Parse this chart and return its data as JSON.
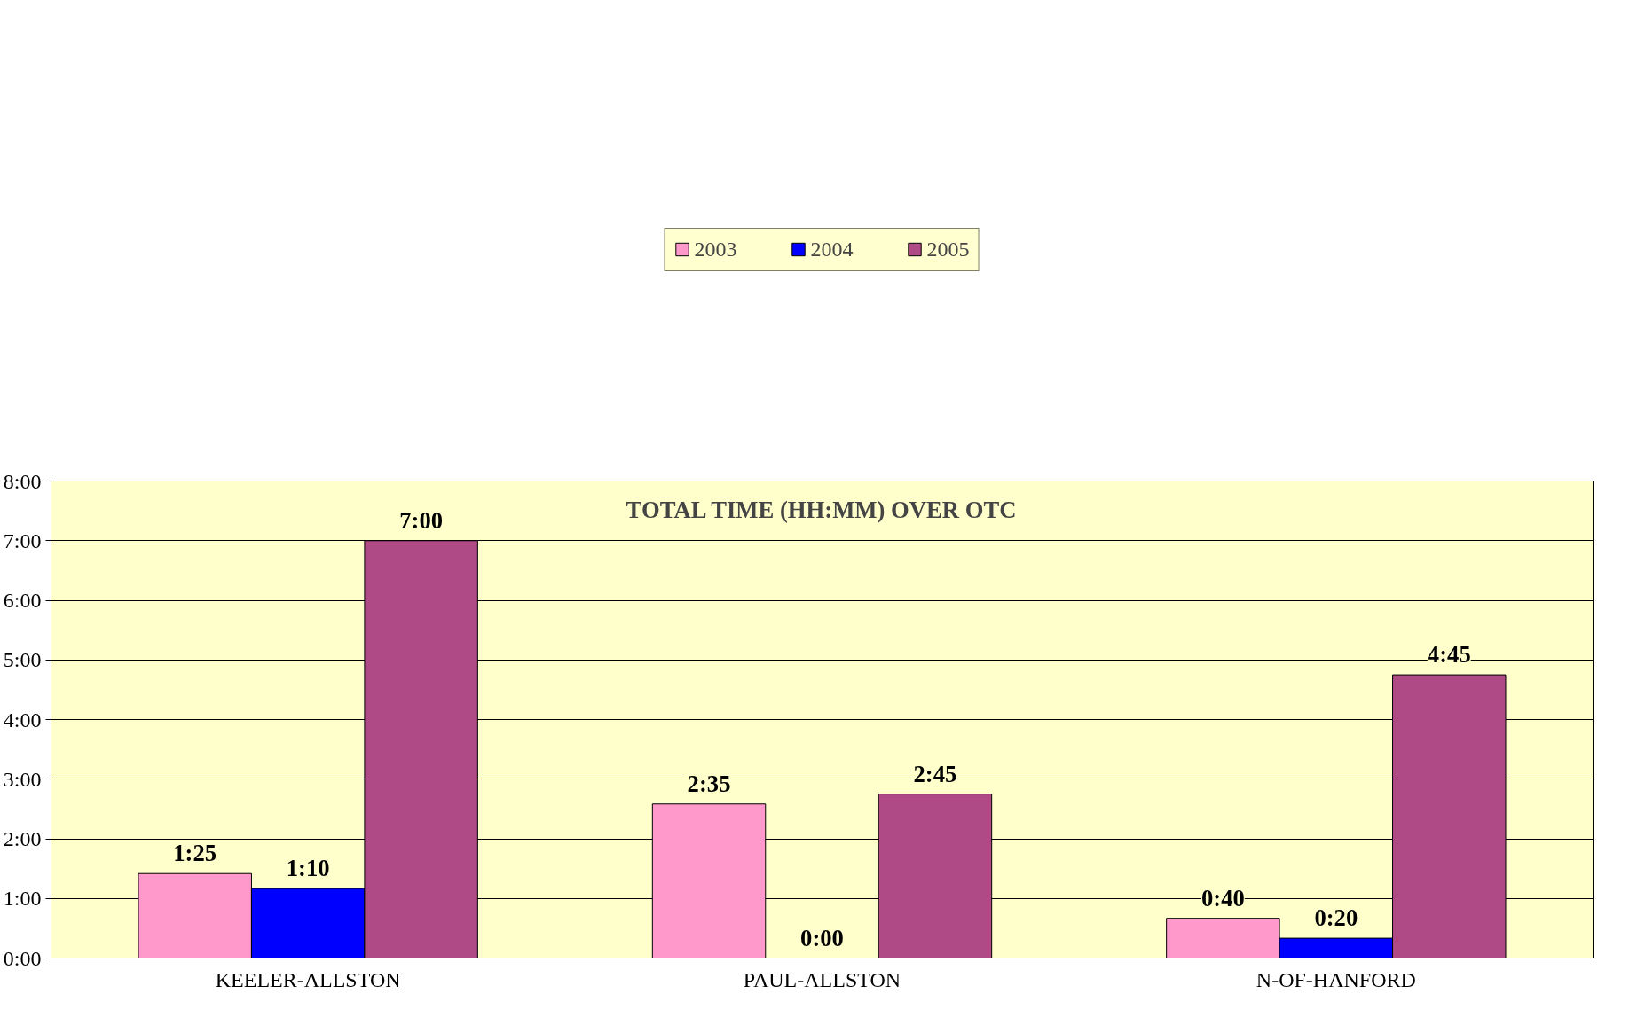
{
  "chart_data": {
    "type": "bar",
    "title": "TOTAL TIME (HH:MM) OVER OTC",
    "categories": [
      "KEELER-ALLSTON",
      "PAUL-ALLSTON",
      "N-OF-HANFORD"
    ],
    "series": [
      {
        "name": "2003",
        "color": "#ff99cc",
        "values": [
          1.4167,
          2.5833,
          0.6667
        ],
        "value_labels": [
          "1:25",
          "2:35",
          "0:40"
        ]
      },
      {
        "name": "2004",
        "color": "#0000ff",
        "values": [
          1.1667,
          0,
          0.3333
        ],
        "value_labels": [
          "1:10",
          "0:00",
          "0:20"
        ]
      },
      {
        "name": "2005",
        "color": "#b04a86",
        "values": [
          7,
          2.75,
          4.75
        ],
        "value_labels": [
          "7:00",
          "2:45",
          "4:45"
        ]
      }
    ],
    "ylim": [
      0,
      8
    ],
    "yticks": [
      {
        "value": 0,
        "label": "0:00"
      },
      {
        "value": 1,
        "label": "1:00"
      },
      {
        "value": 2,
        "label": "2:00"
      },
      {
        "value": 3,
        "label": "3:00"
      },
      {
        "value": 4,
        "label": "4:00"
      },
      {
        "value": 5,
        "label": "5:00"
      },
      {
        "value": 6,
        "label": "6:00"
      },
      {
        "value": 7,
        "label": "7:00"
      },
      {
        "value": 8,
        "label": "8:00"
      }
    ],
    "grid": "y",
    "legend": "top"
  }
}
